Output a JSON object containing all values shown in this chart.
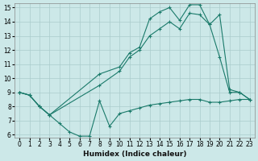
{
  "xlabel": "Humidex (Indice chaleur)",
  "background_color": "#cce8e8",
  "grid_color": "#aacccc",
  "line_color": "#1a7a6a",
  "xlim": [
    -0.5,
    23.5
  ],
  "ylim": [
    5.8,
    15.3
  ],
  "yticks": [
    6,
    7,
    8,
    9,
    10,
    11,
    12,
    13,
    14,
    15
  ],
  "xticks": [
    0,
    1,
    2,
    3,
    4,
    5,
    6,
    7,
    8,
    9,
    10,
    11,
    12,
    13,
    14,
    15,
    16,
    17,
    18,
    19,
    20,
    21,
    22,
    23
  ],
  "series1_x": [
    0,
    1,
    2,
    3,
    4,
    5,
    6,
    7,
    8,
    9,
    10,
    11,
    12,
    13,
    14,
    15,
    16,
    17,
    18,
    19,
    20,
    21,
    22,
    23
  ],
  "series1_y": [
    9.0,
    8.8,
    8.0,
    7.4,
    6.8,
    6.2,
    5.9,
    5.9,
    8.4,
    6.6,
    7.5,
    7.7,
    7.9,
    8.1,
    8.2,
    8.3,
    8.4,
    8.5,
    8.5,
    8.3,
    8.3,
    8.4,
    8.5,
    8.5
  ],
  "series2_x": [
    0,
    1,
    2,
    3,
    8,
    10,
    11,
    12,
    13,
    14,
    15,
    16,
    17,
    18,
    19,
    20,
    21,
    22,
    23
  ],
  "series2_y": [
    9.0,
    8.8,
    8.0,
    7.4,
    10.3,
    10.8,
    11.8,
    12.2,
    14.2,
    14.7,
    15.0,
    14.1,
    15.2,
    15.2,
    13.8,
    11.5,
    9.0,
    9.0,
    8.5
  ],
  "series3_x": [
    0,
    1,
    2,
    3,
    8,
    10,
    11,
    12,
    13,
    14,
    15,
    16,
    17,
    18,
    19,
    20,
    21,
    22,
    23
  ],
  "series3_y": [
    9.0,
    8.8,
    8.0,
    7.4,
    9.5,
    10.5,
    11.5,
    12.0,
    13.0,
    13.5,
    14.0,
    13.5,
    14.6,
    14.5,
    13.8,
    14.5,
    9.2,
    9.0,
    8.5
  ]
}
